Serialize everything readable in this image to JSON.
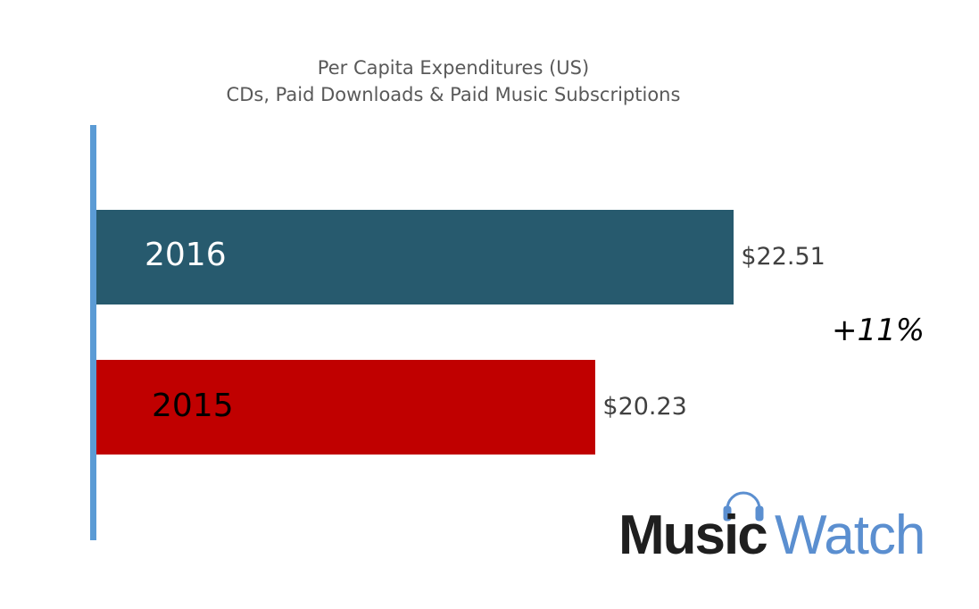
{
  "chart_data": {
    "type": "bar",
    "orientation": "horizontal",
    "title": "Per Capita Expenditures (US)",
    "subtitle": "CDs, Paid Downloads & Paid Music Subscriptions",
    "categories": [
      "2016",
      "2015"
    ],
    "values": [
      22.51,
      20.23
    ],
    "data_labels": [
      "$22.51",
      "$20.23"
    ],
    "colors": [
      "#275A6E",
      "#C00000"
    ],
    "label_colors": [
      "#FFFFFF",
      "#000000"
    ],
    "xlim": [
      12,
      23
    ],
    "grid": false,
    "annotation": "+11%"
  },
  "logo": {
    "text_dark": "Music",
    "text_light": "Watch",
    "dark_color": "#1F1F1F",
    "light_color": "#5B8FD0"
  }
}
